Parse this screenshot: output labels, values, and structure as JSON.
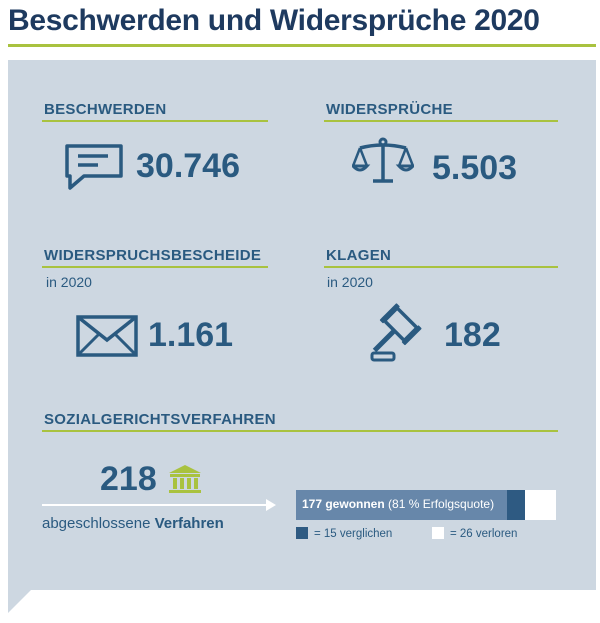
{
  "title": "Beschwerden und Widersprüche 2020",
  "colors": {
    "navy": "#1e3a5f",
    "text_blue": "#2a5a80",
    "lime": "#a9c23f",
    "panel": "#cdd7e1",
    "won": "#6787aa",
    "settled": "#2e5a82",
    "lost": "#ffffff"
  },
  "beschwerden": {
    "label": "BESCHWERDEN",
    "value": "30.746",
    "icon": "speech-bubble-icon"
  },
  "widersprueche": {
    "label": "WIDERSPRÜCHE",
    "value": "5.503",
    "icon": "scales-icon"
  },
  "widerspruchsbescheide": {
    "label": "WIDERSPRUCHSBESCHEIDE",
    "sub": "in 2020",
    "value": "1.161",
    "icon": "envelope-icon"
  },
  "klagen": {
    "label": "KLAGEN",
    "sub": "in 2020",
    "value": "182",
    "icon": "gavel-icon"
  },
  "sozialgericht": {
    "label": "SOZIALGERICHTSVERFAHREN",
    "value": "218",
    "icon": "courthouse-icon",
    "closed_prefix": "abgeschlossene ",
    "closed_bold": "Verfahren",
    "won_bold": "177 gewonnen",
    "won_rest": " (81 % Erfolgsquote)",
    "legend_settled": "= 15 verglichen",
    "legend_lost": "= 26 verloren",
    "breakdown": {
      "won": 177,
      "settled": 15,
      "lost": 26,
      "total": 218
    }
  }
}
